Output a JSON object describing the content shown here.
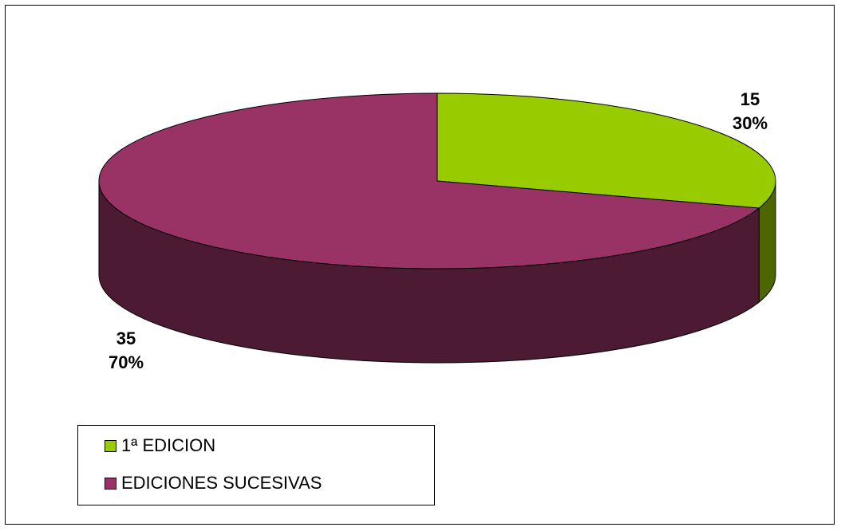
{
  "chart_data": {
    "type": "pie",
    "style": "3d",
    "categories": [
      "1ª EDICION",
      "EDICIONES SUCESIVAS"
    ],
    "values": [
      15,
      35
    ],
    "percentages": [
      "30%",
      "70%"
    ],
    "value_labels": [
      "15",
      "35"
    ],
    "colors": [
      "#99cc00",
      "#993366"
    ],
    "side_colors": [
      "#4d6600",
      "#4d1a33"
    ],
    "legend_position": "bottom-left",
    "title": "",
    "xlabel": "",
    "ylabel": ""
  }
}
